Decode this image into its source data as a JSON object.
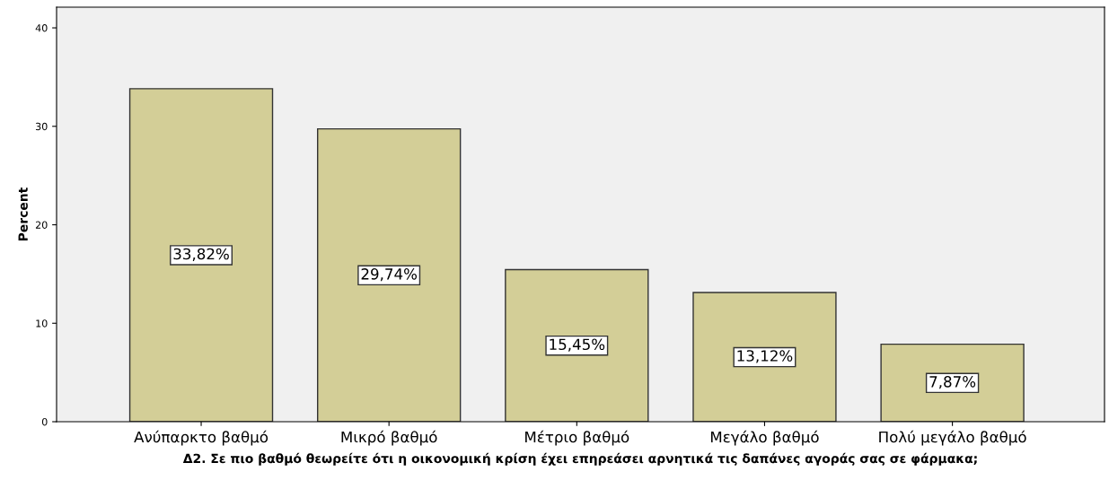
{
  "chart_data": {
    "type": "bar",
    "categories": [
      "Ανύπαρκτο βαθμό",
      "Μικρό βαθμό",
      "Μέτριο βαθμό",
      "Μεγάλο βαθμό",
      "Πολύ μεγάλο βαθμό"
    ],
    "values": [
      33.82,
      29.74,
      15.45,
      13.12,
      7.87
    ],
    "value_labels": [
      "33,82%",
      "29,74%",
      "15,45%",
      "13,12%",
      "7,87%"
    ],
    "color": "#d3ce97",
    "xlabel": "Δ2. Σε πιο βαθμό θεωρείτε ότι η οικονομική κρίση έχει επηρεάσει αρνητικά τις δαπάνες αγοράς σας σε φάρμακα;",
    "ylabel": "Percent",
    "ylim": [
      0,
      42.1
    ],
    "yticks": [
      0,
      10,
      20,
      30,
      40
    ],
    "grid": false
  }
}
